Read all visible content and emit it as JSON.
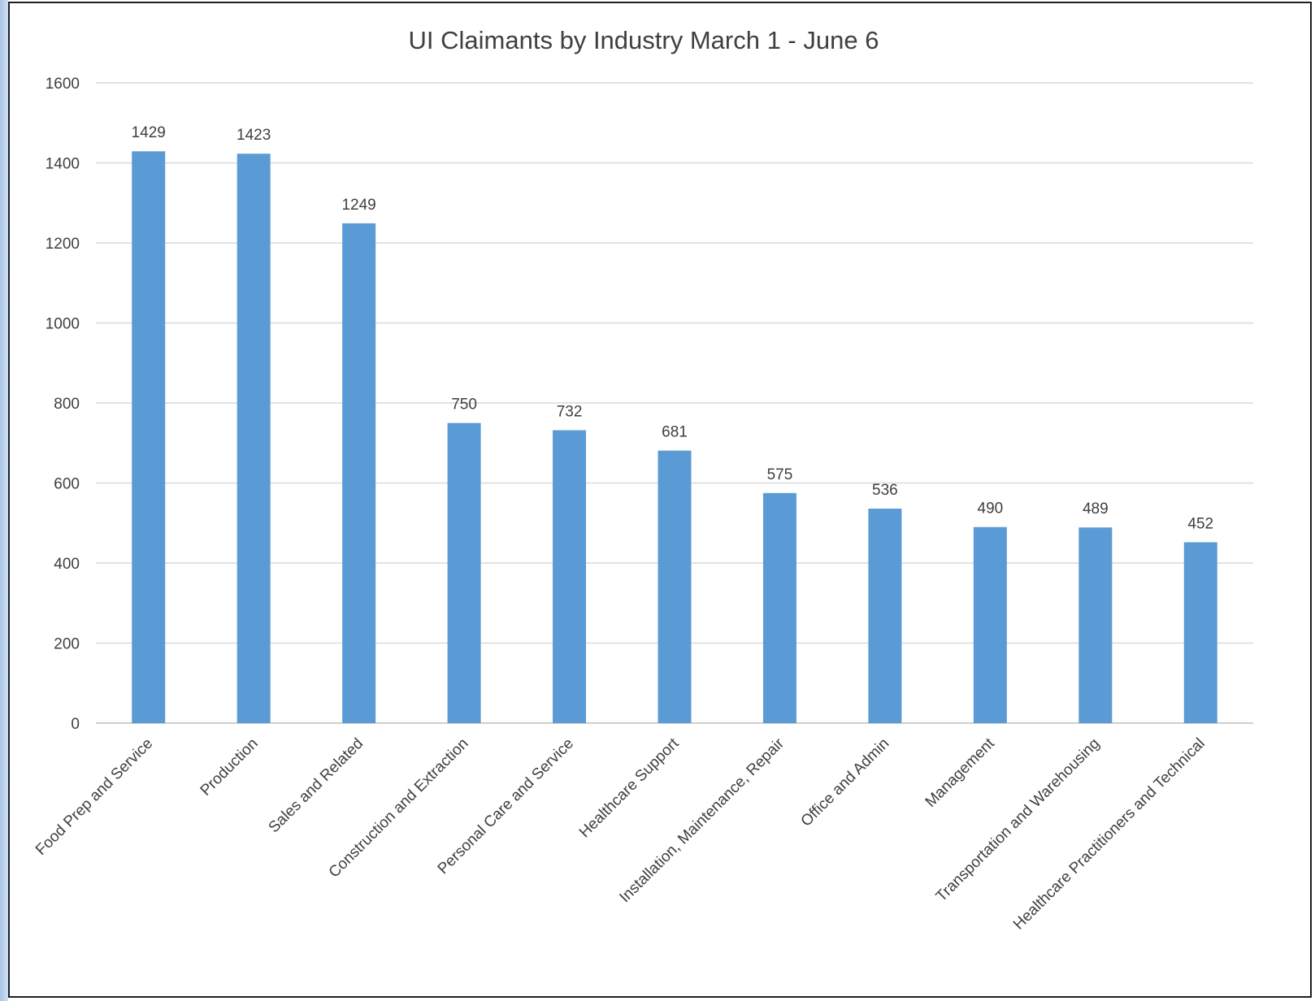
{
  "chart_data": {
    "type": "bar",
    "title": "UI Claimants by Industry March 1 - June 6",
    "xlabel": "",
    "ylabel": "",
    "categories": [
      "Food Prep and Service",
      "Production",
      "Sales and Related",
      "Construction and Extraction",
      "Personal Care and Service",
      "Healthcare Support",
      "Installation, Maintenance, Repair",
      "Office and Admin",
      "Management",
      "Transportation and Warehousing",
      "Healthcare Practitioners and Technical"
    ],
    "values": [
      1429,
      1423,
      1249,
      750,
      732,
      681,
      575,
      536,
      490,
      489,
      452
    ],
    "data_labels": [
      "1429",
      "1423",
      "1249",
      "750",
      "732",
      "681",
      "575",
      "536",
      "490",
      "489",
      "452"
    ],
    "ylim": [
      0,
      1600
    ],
    "yticks": [
      0,
      200,
      400,
      600,
      800,
      1000,
      1200,
      1400,
      1600
    ],
    "ytick_labels": [
      "0",
      "200",
      "400",
      "600",
      "800",
      "1000",
      "1200",
      "1400",
      "1600"
    ],
    "grid": true,
    "legend": "none",
    "colors": {
      "bar": "#5b9bd5",
      "grid": "#d9d9d9",
      "text": "#3f3f3f",
      "frame": "#1f1f1f",
      "side_strip": "#bcd3ee"
    }
  }
}
